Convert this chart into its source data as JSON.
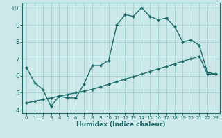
{
  "xlabel": "Humidex (Indice chaleur)",
  "bg_color": "#cce8e8",
  "grid_color": "#99cccc",
  "line_color": "#1a6b6b",
  "xlim": [
    -0.5,
    23.5
  ],
  "ylim": [
    3.8,
    10.3
  ],
  "yticks": [
    4,
    5,
    6,
    7,
    8,
    9,
    10
  ],
  "xticks": [
    0,
    1,
    2,
    3,
    4,
    5,
    6,
    7,
    8,
    9,
    10,
    11,
    12,
    13,
    14,
    15,
    16,
    17,
    18,
    19,
    20,
    21,
    22,
    23
  ],
  "series1_x": [
    0,
    1,
    2,
    3,
    4,
    5,
    6,
    7,
    8,
    9,
    10,
    11,
    12,
    13,
    14,
    15,
    16,
    17,
    18,
    19,
    20,
    21,
    22,
    23
  ],
  "series1_y": [
    6.5,
    5.6,
    5.2,
    4.2,
    4.8,
    4.7,
    4.7,
    5.5,
    6.6,
    6.6,
    6.9,
    9.0,
    9.6,
    9.5,
    10.0,
    9.5,
    9.3,
    9.4,
    8.9,
    8.0,
    8.1,
    7.8,
    6.2,
    6.1
  ],
  "series2_x": [
    0,
    1,
    2,
    3,
    4,
    5,
    6,
    7,
    8,
    9,
    10,
    11,
    12,
    13,
    14,
    15,
    16,
    17,
    18,
    19,
    20,
    21,
    22,
    23
  ],
  "series2_y": [
    4.4,
    4.5,
    4.6,
    4.7,
    4.8,
    4.9,
    5.0,
    5.1,
    5.2,
    5.35,
    5.5,
    5.65,
    5.8,
    5.95,
    6.1,
    6.25,
    6.4,
    6.55,
    6.7,
    6.85,
    7.0,
    7.15,
    6.1,
    6.1
  ],
  "marker": "D",
  "markersize": 2.0,
  "linewidth": 1.0,
  "xlabel_fontsize": 6.5,
  "xlabel_fontweight": "bold",
  "tick_fontsize_x": 5.0,
  "tick_fontsize_y": 6.5
}
